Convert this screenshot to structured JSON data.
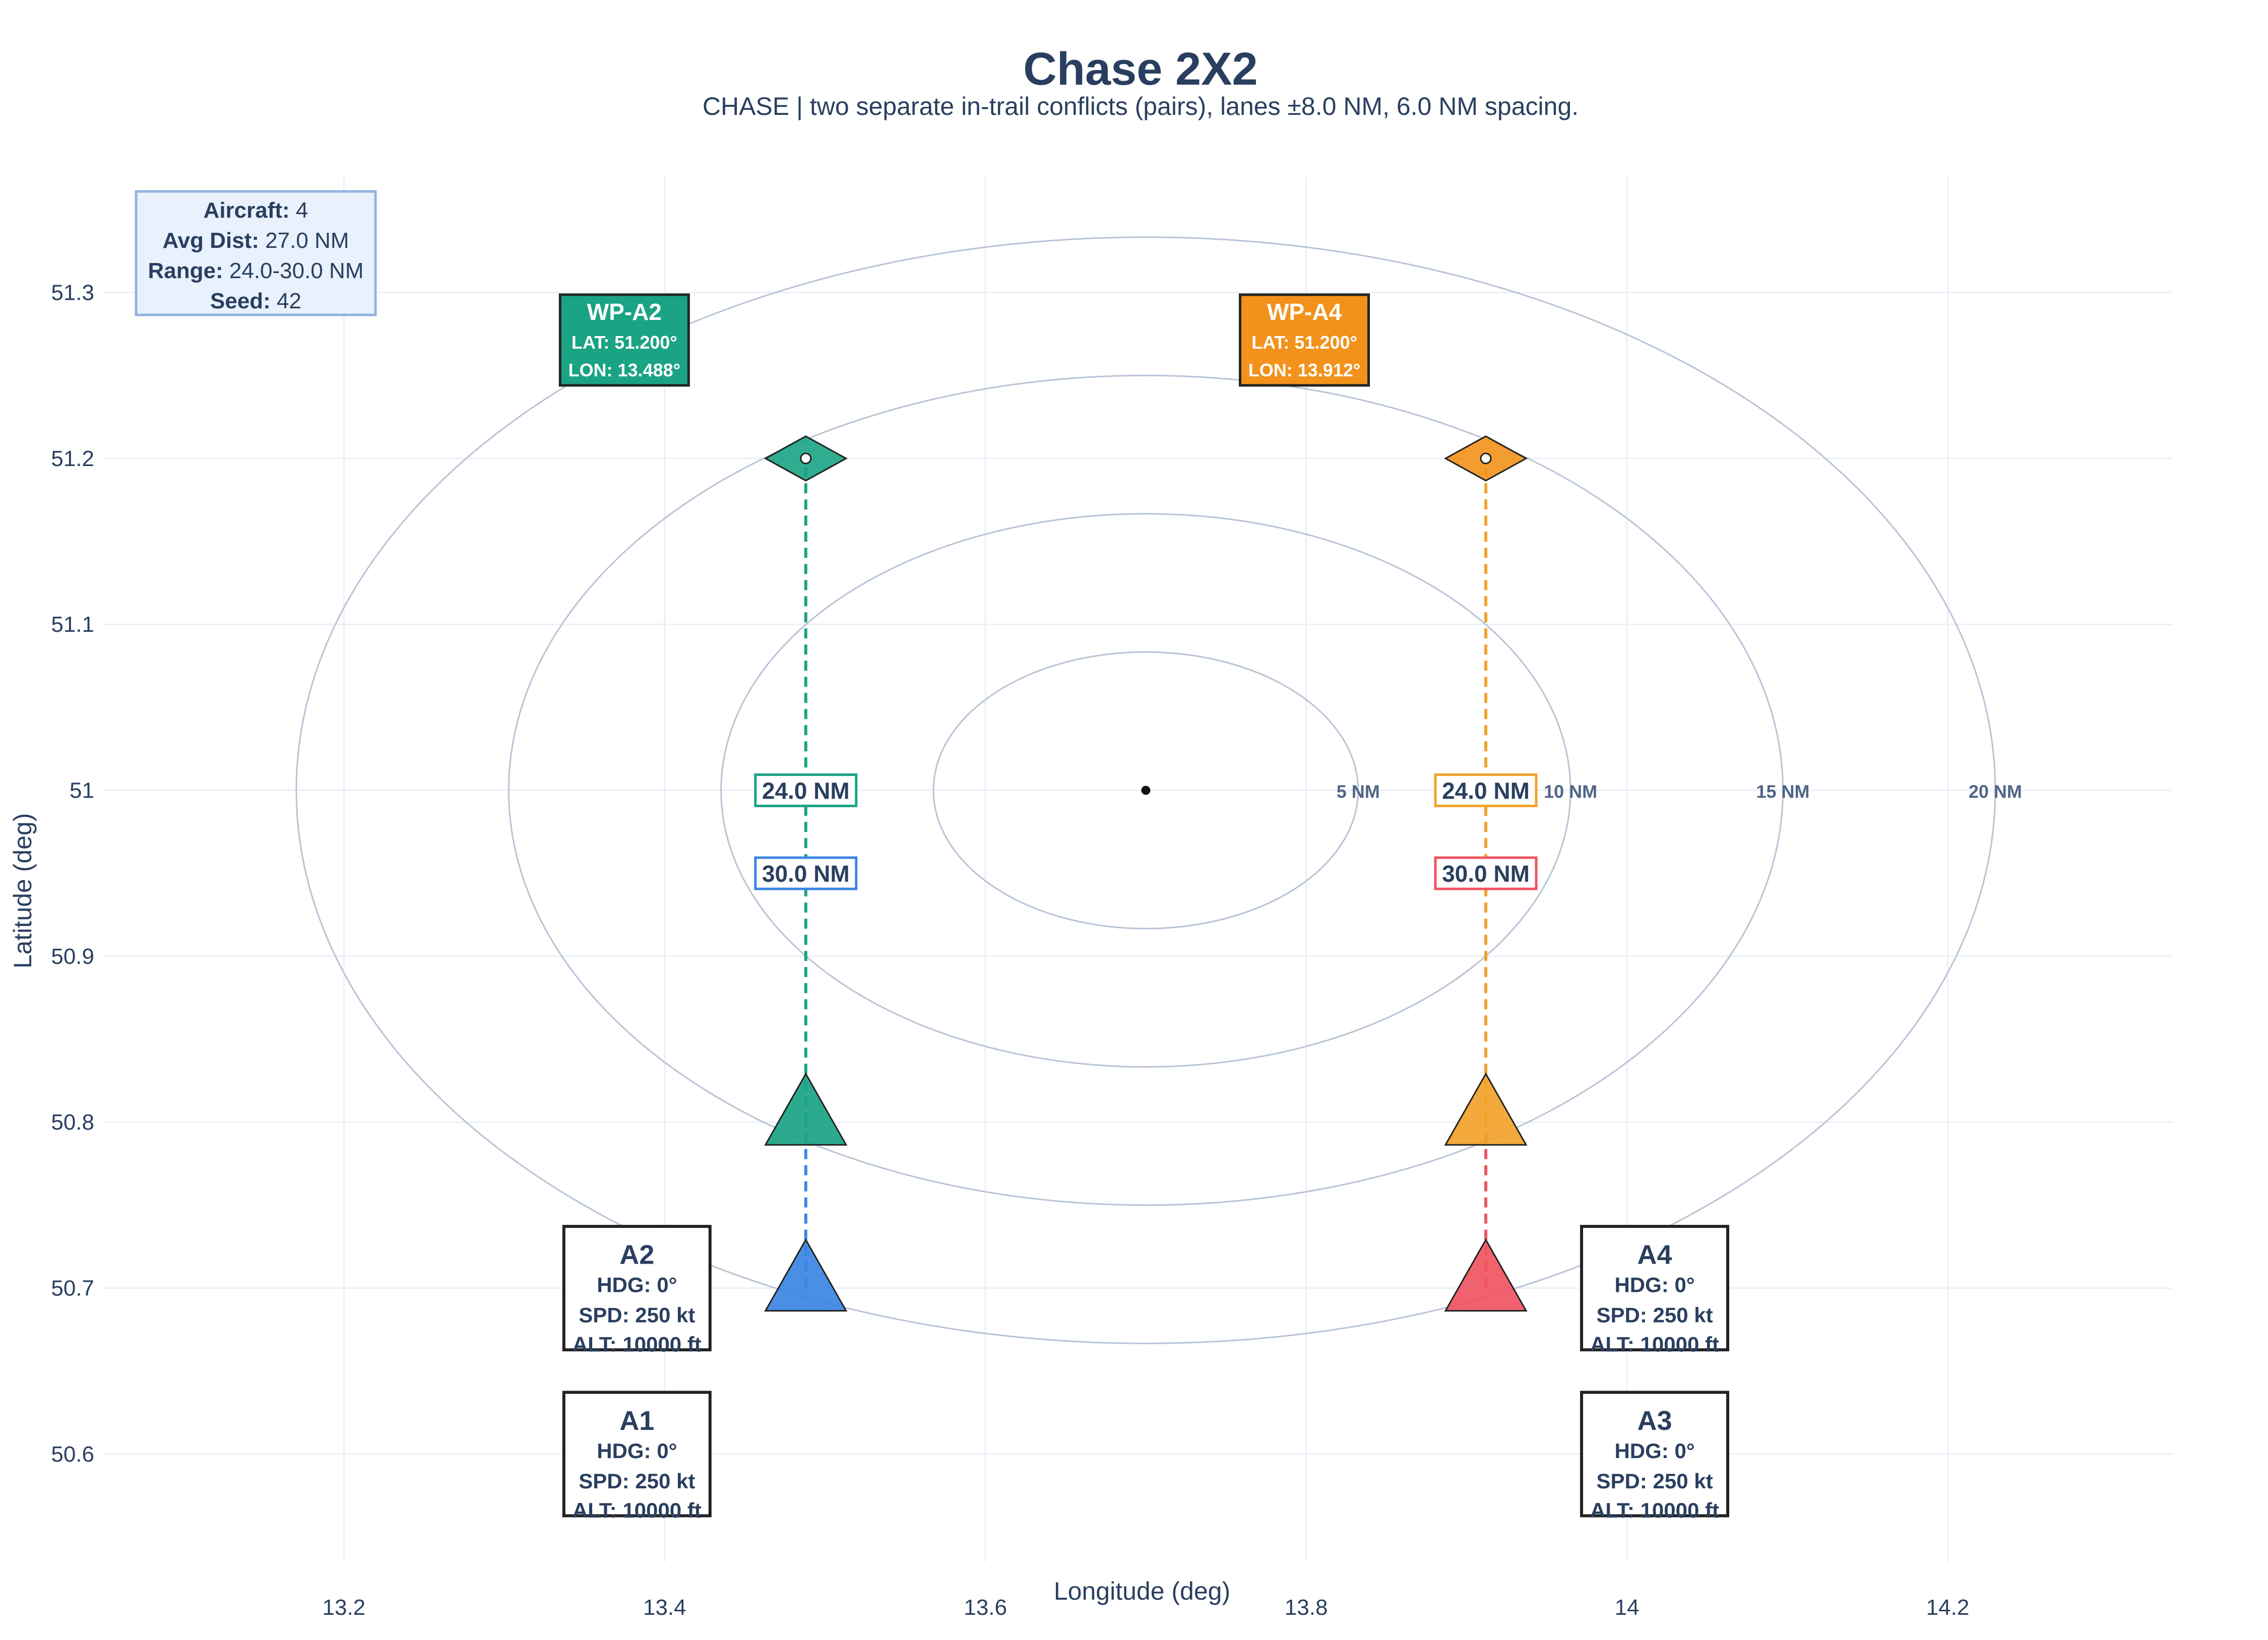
{
  "chart_data": {
    "type": "scatter",
    "title": "Chase 2X2",
    "subtitle": "CHASE | two separate in-trail conflicts (pairs), lanes ±8.0 NM, 6.0 NM spacing.",
    "xlabel": "Longitude (deg)",
    "ylabel": "Latitude (deg)",
    "xlim": [
      13.05,
      14.34
    ],
    "ylim": [
      50.535,
      51.37
    ],
    "xticks": [
      13.2,
      13.4,
      13.6,
      13.8,
      14,
      14.2
    ],
    "xtick_labels": [
      "13.2",
      "13.4",
      "13.6",
      "13.8",
      "14",
      "14.2"
    ],
    "yticks": [
      50.6,
      50.7,
      50.8,
      50.9,
      51,
      51.1,
      51.2,
      51.3
    ],
    "ytick_labels": [
      "50.6",
      "50.7",
      "50.8",
      "50.9",
      "51",
      "51.1",
      "51.2",
      "51.3"
    ],
    "grid": true,
    "center": {
      "lon": 13.7,
      "lat": 51.0
    },
    "rings": [
      {
        "radius_nm": 5,
        "label": "5 NM"
      },
      {
        "radius_nm": 10,
        "label": "10 NM"
      },
      {
        "radius_nm": 15,
        "label": "15 NM"
      },
      {
        "radius_nm": 20,
        "label": "20 NM"
      }
    ],
    "info_box": [
      {
        "key": "Aircraft:",
        "value": "4"
      },
      {
        "key": "Avg Dist:",
        "value": "27.0 NM"
      },
      {
        "key": "Range:",
        "value": "24.0-30.0 NM"
      },
      {
        "key": "Seed:",
        "value": "42"
      }
    ],
    "waypoints": [
      {
        "name": "WP-A2",
        "lat": 51.2,
        "lon": 13.488,
        "lat_label": "LAT: 51.200°",
        "lon_label": "LON: 13.488°",
        "color": "#1aa384"
      },
      {
        "name": "WP-A4",
        "lat": 51.2,
        "lon": 13.912,
        "lat_label": "LAT: 51.200°",
        "lon_label": "LON: 13.912°",
        "color": "#f2921a"
      }
    ],
    "aircraft": [
      {
        "id": "A1",
        "lat": 50.7,
        "lon": 13.488,
        "color": "#3b86e3",
        "hdg": "HDG: 0°",
        "spd": "SPD: 250 kt",
        "alt": "ALT: 10000 ft",
        "dist": "30.0 NM",
        "dist_lat": 50.95
      },
      {
        "id": "A2",
        "lat": 50.8,
        "lon": 13.488,
        "color": "#1aa384",
        "hdg": "HDG: 0°",
        "spd": "SPD: 250 kt",
        "alt": "ALT: 10000 ft",
        "dist": "24.0 NM",
        "dist_lat": 51.0
      },
      {
        "id": "A3",
        "lat": 50.7,
        "lon": 13.912,
        "color": "#ef5561",
        "hdg": "HDG: 0°",
        "spd": "SPD: 250 kt",
        "alt": "ALT: 10000 ft",
        "dist": "30.0 NM",
        "dist_lat": 50.95
      },
      {
        "id": "A4",
        "lat": 50.8,
        "lon": 13.912,
        "color": "#f2a22a",
        "hdg": "HDG: 0°",
        "spd": "SPD: 250 kt",
        "alt": "ALT: 10000 ft",
        "dist": "24.0 NM",
        "dist_lat": 51.0
      }
    ],
    "colors": {
      "text": "#2a3f5f",
      "grid": "#ebf0f8",
      "ring": "#b8c3d6",
      "info_bg": "#e8f1fc",
      "info_border": "#93b4e0"
    }
  }
}
